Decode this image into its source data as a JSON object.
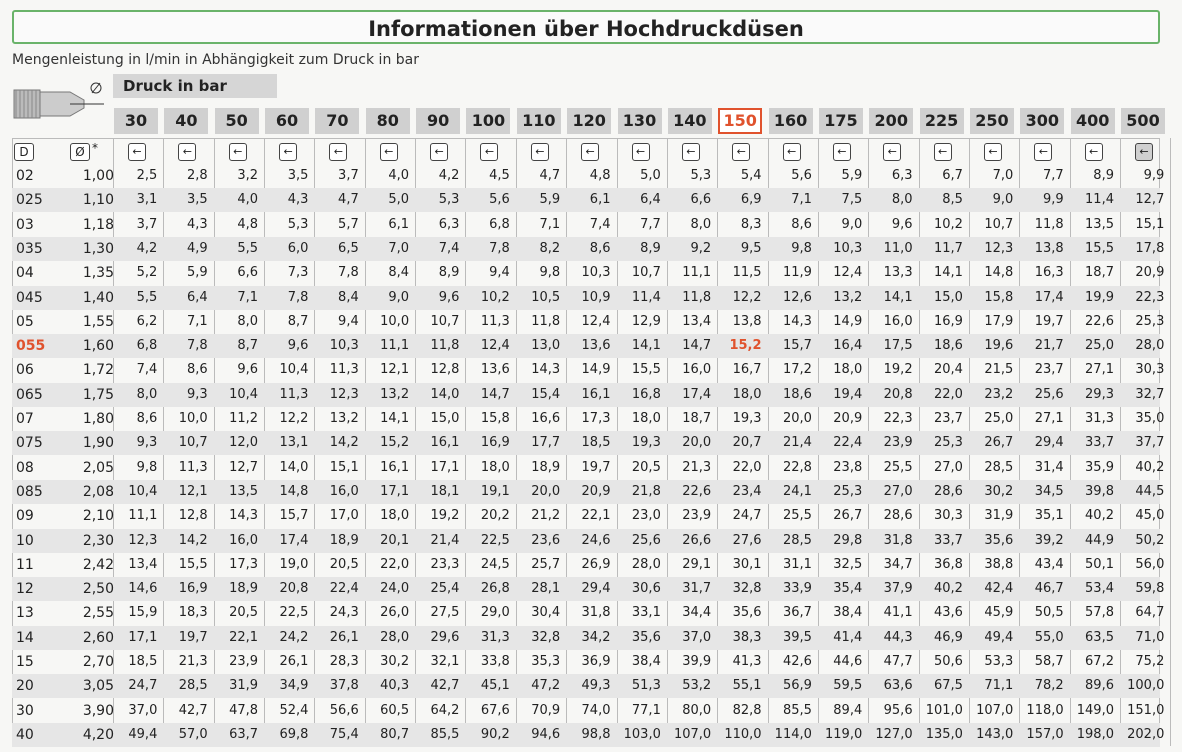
{
  "title": "Informationen über Hochdruckdüsen",
  "subtitle": "Mengenleistung in l/min in Abhängigkeit zum Druck in bar",
  "druck_label": "Druck in bar",
  "icons": {
    "nozzle": "nozzle-diagram-icon",
    "index": "arrow-index-icon"
  },
  "header": {
    "d_label": "D",
    "diam_label": "Ø",
    "star": "*"
  },
  "highlight_color": "#e0522d",
  "highlight_pressure": "150",
  "highlight_row": "055",
  "pressures": [
    "30",
    "40",
    "50",
    "60",
    "70",
    "80",
    "90",
    "100",
    "110",
    "120",
    "130",
    "140",
    "150",
    "160",
    "175",
    "200",
    "225",
    "250",
    "300",
    "400",
    "500"
  ],
  "rows": [
    {
      "code": "02",
      "diam": "1,00",
      "v": [
        "2,5",
        "2,8",
        "3,2",
        "3,5",
        "3,7",
        "4,0",
        "4,2",
        "4,5",
        "4,7",
        "4,8",
        "5,0",
        "5,3",
        "5,4",
        "5,6",
        "5,9",
        "6,3",
        "6,7",
        "7,0",
        "7,7",
        "8,9",
        "9,9"
      ]
    },
    {
      "code": "025",
      "diam": "1,10",
      "v": [
        "3,1",
        "3,5",
        "4,0",
        "4,3",
        "4,7",
        "5,0",
        "5,3",
        "5,6",
        "5,9",
        "6,1",
        "6,4",
        "6,6",
        "6,9",
        "7,1",
        "7,5",
        "8,0",
        "8,5",
        "9,0",
        "9,9",
        "11,4",
        "12,7"
      ]
    },
    {
      "code": "03",
      "diam": "1,18",
      "v": [
        "3,7",
        "4,3",
        "4,8",
        "5,3",
        "5,7",
        "6,1",
        "6,3",
        "6,8",
        "7,1",
        "7,4",
        "7,7",
        "8,0",
        "8,3",
        "8,6",
        "9,0",
        "9,6",
        "10,2",
        "10,7",
        "11,8",
        "13,5",
        "15,1"
      ]
    },
    {
      "code": "035",
      "diam": "1,30",
      "v": [
        "4,2",
        "4,9",
        "5,5",
        "6,0",
        "6,5",
        "7,0",
        "7,4",
        "7,8",
        "8,2",
        "8,6",
        "8,9",
        "9,2",
        "9,5",
        "9,8",
        "10,3",
        "11,0",
        "11,7",
        "12,3",
        "13,8",
        "15,5",
        "17,8"
      ]
    },
    {
      "code": "04",
      "diam": "1,35",
      "v": [
        "5,2",
        "5,9",
        "6,6",
        "7,3",
        "7,8",
        "8,4",
        "8,9",
        "9,4",
        "9,8",
        "10,3",
        "10,7",
        "11,1",
        "11,5",
        "11,9",
        "12,4",
        "13,3",
        "14,1",
        "14,8",
        "16,3",
        "18,7",
        "20,9"
      ]
    },
    {
      "code": "045",
      "diam": "1,40",
      "v": [
        "5,5",
        "6,4",
        "7,1",
        "7,8",
        "8,4",
        "9,0",
        "9,6",
        "10,2",
        "10,5",
        "10,9",
        "11,4",
        "11,8",
        "12,2",
        "12,6",
        "13,2",
        "14,1",
        "15,0",
        "15,8",
        "17,4",
        "19,9",
        "22,3"
      ]
    },
    {
      "code": "05",
      "diam": "1,55",
      "v": [
        "6,2",
        "7,1",
        "8,0",
        "8,7",
        "9,4",
        "10,0",
        "10,7",
        "11,3",
        "11,8",
        "12,4",
        "12,9",
        "13,4",
        "13,8",
        "14,3",
        "14,9",
        "16,0",
        "16,9",
        "17,9",
        "19,7",
        "22,6",
        "25,3"
      ]
    },
    {
      "code": "055",
      "diam": "1,60",
      "v": [
        "6,8",
        "7,8",
        "8,7",
        "9,6",
        "10,3",
        "11,1",
        "11,8",
        "12,4",
        "13,0",
        "13,6",
        "14,1",
        "14,7",
        "15,2",
        "15,7",
        "16,4",
        "17,5",
        "18,6",
        "19,6",
        "21,7",
        "25,0",
        "28,0"
      ]
    },
    {
      "code": "06",
      "diam": "1,72",
      "v": [
        "7,4",
        "8,6",
        "9,6",
        "10,4",
        "11,3",
        "12,1",
        "12,8",
        "13,6",
        "14,3",
        "14,9",
        "15,5",
        "16,0",
        "16,7",
        "17,2",
        "18,0",
        "19,2",
        "20,4",
        "21,5",
        "23,7",
        "27,1",
        "30,3"
      ]
    },
    {
      "code": "065",
      "diam": "1,75",
      "v": [
        "8,0",
        "9,3",
        "10,4",
        "11,3",
        "12,3",
        "13,2",
        "14,0",
        "14,7",
        "15,4",
        "16,1",
        "16,8",
        "17,4",
        "18,0",
        "18,6",
        "19,4",
        "20,8",
        "22,0",
        "23,2",
        "25,6",
        "29,3",
        "32,7"
      ]
    },
    {
      "code": "07",
      "diam": "1,80",
      "v": [
        "8,6",
        "10,0",
        "11,2",
        "12,2",
        "13,2",
        "14,1",
        "15,0",
        "15,8",
        "16,6",
        "17,3",
        "18,0",
        "18,7",
        "19,3",
        "20,0",
        "20,9",
        "22,3",
        "23,7",
        "25,0",
        "27,1",
        "31,3",
        "35,0"
      ]
    },
    {
      "code": "075",
      "diam": "1,90",
      "v": [
        "9,3",
        "10,7",
        "12,0",
        "13,1",
        "14,2",
        "15,2",
        "16,1",
        "16,9",
        "17,7",
        "18,5",
        "19,3",
        "20,0",
        "20,7",
        "21,4",
        "22,4",
        "23,9",
        "25,3",
        "26,7",
        "29,4",
        "33,7",
        "37,7"
      ]
    },
    {
      "code": "08",
      "diam": "2,05",
      "v": [
        "9,8",
        "11,3",
        "12,7",
        "14,0",
        "15,1",
        "16,1",
        "17,1",
        "18,0",
        "18,9",
        "19,7",
        "20,5",
        "21,3",
        "22,0",
        "22,8",
        "23,8",
        "25,5",
        "27,0",
        "28,5",
        "31,4",
        "35,9",
        "40,2"
      ]
    },
    {
      "code": "085",
      "diam": "2,08",
      "v": [
        "10,4",
        "12,1",
        "13,5",
        "14,8",
        "16,0",
        "17,1",
        "18,1",
        "19,1",
        "20,0",
        "20,9",
        "21,8",
        "22,6",
        "23,4",
        "24,1",
        "25,3",
        "27,0",
        "28,6",
        "30,2",
        "34,5",
        "39,8",
        "44,5"
      ]
    },
    {
      "code": "09",
      "diam": "2,10",
      "v": [
        "11,1",
        "12,8",
        "14,3",
        "15,7",
        "17,0",
        "18,0",
        "19,2",
        "20,2",
        "21,2",
        "22,1",
        "23,0",
        "23,9",
        "24,7",
        "25,5",
        "26,7",
        "28,6",
        "30,3",
        "31,9",
        "35,1",
        "40,2",
        "45,0"
      ]
    },
    {
      "code": "10",
      "diam": "2,30",
      "v": [
        "12,3",
        "14,2",
        "16,0",
        "17,4",
        "18,9",
        "20,1",
        "21,4",
        "22,5",
        "23,6",
        "24,6",
        "25,6",
        "26,6",
        "27,6",
        "28,5",
        "29,8",
        "31,8",
        "33,7",
        "35,6",
        "39,2",
        "44,9",
        "50,2"
      ]
    },
    {
      "code": "11",
      "diam": "2,42",
      "v": [
        "13,4",
        "15,5",
        "17,3",
        "19,0",
        "20,5",
        "22,0",
        "23,3",
        "24,5",
        "25,7",
        "26,9",
        "28,0",
        "29,1",
        "30,1",
        "31,1",
        "32,5",
        "34,7",
        "36,8",
        "38,8",
        "43,4",
        "50,1",
        "56,0"
      ]
    },
    {
      "code": "12",
      "diam": "2,50",
      "v": [
        "14,6",
        "16,9",
        "18,9",
        "20,8",
        "22,4",
        "24,0",
        "25,4",
        "26,8",
        "28,1",
        "29,4",
        "30,6",
        "31,7",
        "32,8",
        "33,9",
        "35,4",
        "37,9",
        "40,2",
        "42,4",
        "46,7",
        "53,4",
        "59,8"
      ]
    },
    {
      "code": "13",
      "diam": "2,55",
      "v": [
        "15,9",
        "18,3",
        "20,5",
        "22,5",
        "24,3",
        "26,0",
        "27,5",
        "29,0",
        "30,4",
        "31,8",
        "33,1",
        "34,4",
        "35,6",
        "36,7",
        "38,4",
        "41,1",
        "43,6",
        "45,9",
        "50,5",
        "57,8",
        "64,7"
      ]
    },
    {
      "code": "14",
      "diam": "2,60",
      "v": [
        "17,1",
        "19,7",
        "22,1",
        "24,2",
        "26,1",
        "28,0",
        "29,6",
        "31,3",
        "32,8",
        "34,2",
        "35,6",
        "37,0",
        "38,3",
        "39,5",
        "41,4",
        "44,3",
        "46,9",
        "49,4",
        "55,0",
        "63,5",
        "71,0"
      ]
    },
    {
      "code": "15",
      "diam": "2,70",
      "v": [
        "18,5",
        "21,3",
        "23,9",
        "26,1",
        "28,3",
        "30,2",
        "32,1",
        "33,8",
        "35,3",
        "36,9",
        "38,4",
        "39,9",
        "41,3",
        "42,6",
        "44,6",
        "47,7",
        "50,6",
        "53,3",
        "58,7",
        "67,2",
        "75,2"
      ]
    },
    {
      "code": "20",
      "diam": "3,05",
      "v": [
        "24,7",
        "28,5",
        "31,9",
        "34,9",
        "37,8",
        "40,3",
        "42,7",
        "45,1",
        "47,2",
        "49,3",
        "51,3",
        "53,2",
        "55,1",
        "56,9",
        "59,5",
        "63,6",
        "67,5",
        "71,1",
        "78,2",
        "89,6",
        "100,0"
      ]
    },
    {
      "code": "30",
      "diam": "3,90",
      "v": [
        "37,0",
        "42,7",
        "47,8",
        "52,4",
        "56,6",
        "60,5",
        "64,2",
        "67,6",
        "70,9",
        "74,0",
        "77,1",
        "80,0",
        "82,8",
        "85,5",
        "89,4",
        "95,6",
        "101,0",
        "107,0",
        "118,0",
        "149,0",
        "151,0"
      ]
    },
    {
      "code": "40",
      "diam": "4,20",
      "v": [
        "49,4",
        "57,0",
        "63,7",
        "69,8",
        "75,4",
        "80,7",
        "85,5",
        "90,2",
        "94,6",
        "98,8",
        "103,0",
        "107,0",
        "110,0",
        "114,0",
        "119,0",
        "127,0",
        "135,0",
        "143,0",
        "157,0",
        "198,0",
        "202,0"
      ]
    }
  ]
}
